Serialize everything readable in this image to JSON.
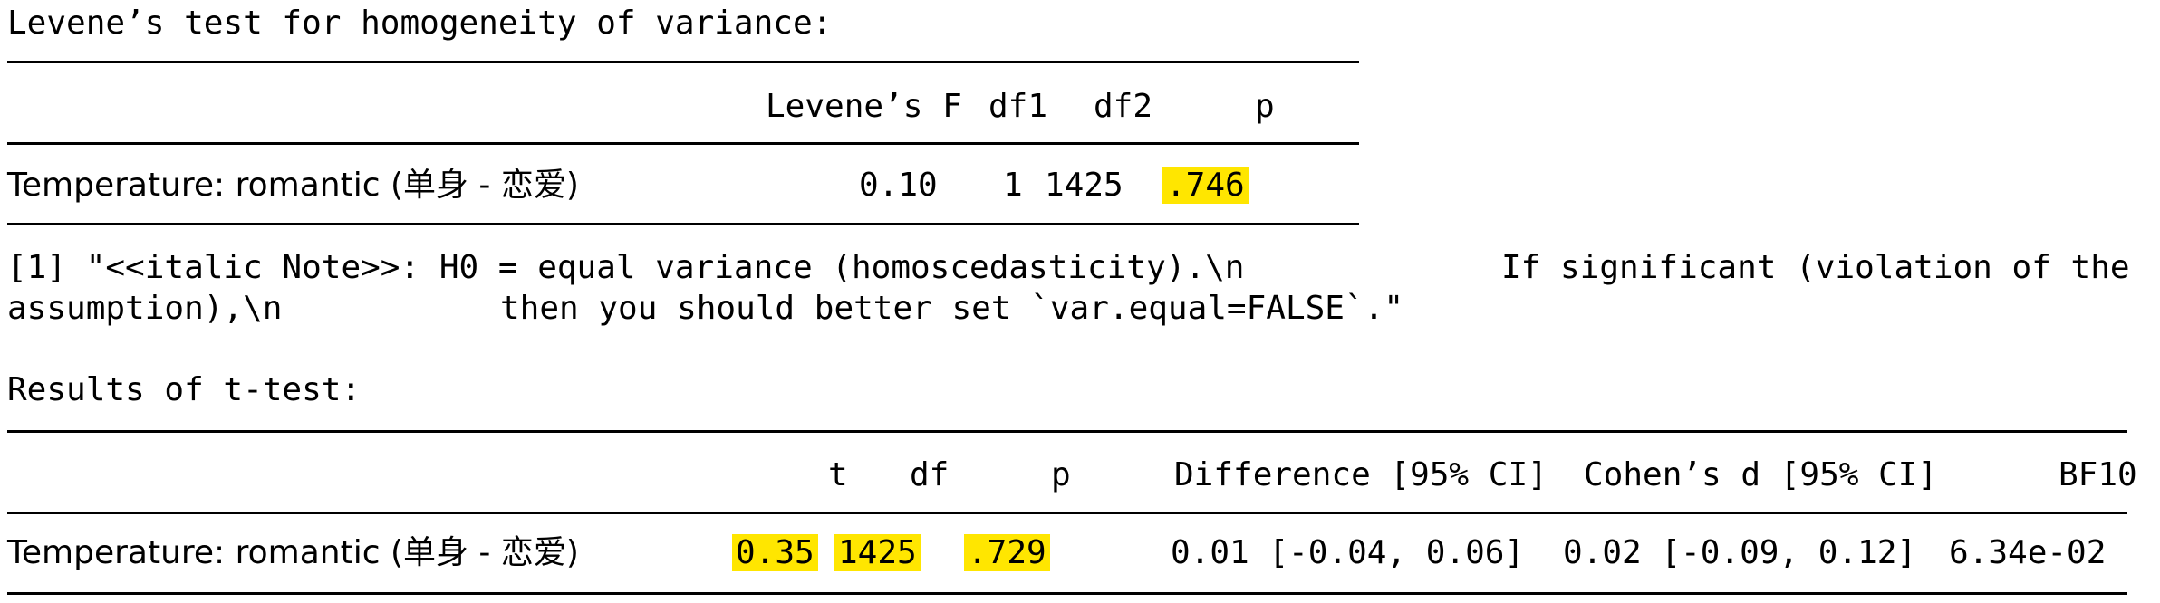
{
  "levene": {
    "heading": "Levene’s test for homogeneity of variance:",
    "headers": {
      "F": "Levene’s F",
      "df1": "df1",
      "df2": "df2",
      "p": "p"
    },
    "row": {
      "label": "Temperature: romantic (单身 - 恋爱)",
      "F": "0.10",
      "df1": "1",
      "df2": "1425",
      "p": ".746"
    }
  },
  "note": {
    "line1_left": "[1] \"<<italic Note>>: H0 = equal variance (homoscedasticity).\\n",
    "line1_right": "If significant (violation of the",
    "line2_left": "assumption),\\n",
    "line2_right": "then you should better set `var.equal=FALSE`.\""
  },
  "ttest": {
    "heading": "Results of t-test:",
    "headers": {
      "t": "t",
      "df": "df",
      "p": "p",
      "difference": "Difference [95% CI]",
      "cohen": "Cohen’s d [95% CI]",
      "bf": "BF10"
    },
    "row": {
      "label": "Temperature: romantic (单身 - 恋爱)",
      "t": "0.35",
      "df": "1425",
      "p": ".729",
      "difference": "0.01 [-0.04, 0.06]",
      "cohen": "0.02 [-0.09, 0.12]",
      "bf": "6.34e-02"
    }
  },
  "colors": {
    "highlight": "#ffe600",
    "text": "#000000",
    "background": "#ffffff"
  }
}
